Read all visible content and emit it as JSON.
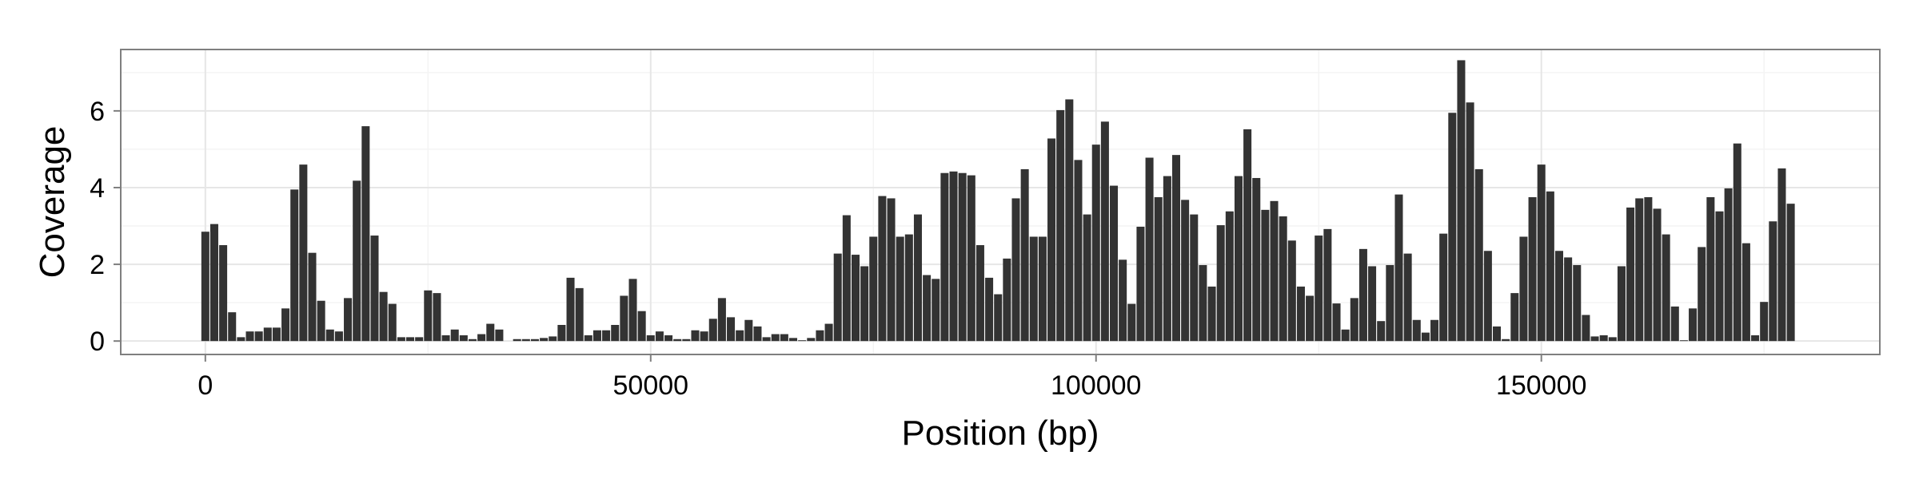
{
  "chart_data": {
    "type": "bar",
    "xlabel": "Position (bp)",
    "ylabel": "Coverage",
    "xlim": [
      -9500,
      188000
    ],
    "ylim": [
      -0.35,
      7.6
    ],
    "x_ticks": [
      0,
      50000,
      100000,
      150000
    ],
    "x_tick_labels": [
      "0",
      "50000",
      "100000",
      "150000"
    ],
    "y_ticks": [
      0,
      2,
      4,
      6
    ],
    "y_tick_labels": [
      "0",
      "2",
      "4",
      "6"
    ],
    "bin_width": 1000,
    "bar_width": 900,
    "grid": true,
    "bar_color": "#333333",
    "values": [
      2.85,
      3.05,
      2.5,
      0.75,
      0.1,
      0.25,
      0.25,
      0.35,
      0.35,
      0.85,
      3.95,
      4.6,
      2.3,
      1.05,
      0.3,
      0.25,
      1.12,
      4.18,
      5.6,
      2.75,
      1.28,
      0.97,
      0.1,
      0.1,
      0.1,
      1.32,
      1.25,
      0.15,
      0.3,
      0.15,
      0.05,
      0.18,
      0.45,
      0.3,
      0.0,
      0.05,
      0.05,
      0.05,
      0.08,
      0.12,
      0.42,
      1.65,
      1.38,
      0.15,
      0.28,
      0.28,
      0.42,
      1.18,
      1.62,
      0.78,
      0.15,
      0.25,
      0.15,
      0.05,
      0.05,
      0.28,
      0.25,
      0.58,
      1.12,
      0.62,
      0.28,
      0.55,
      0.38,
      0.1,
      0.18,
      0.18,
      0.08,
      0.02,
      0.08,
      0.28,
      0.45,
      2.28,
      3.28,
      2.25,
      1.95,
      2.72,
      3.78,
      3.72,
      2.72,
      2.78,
      3.3,
      1.72,
      1.62,
      4.38,
      4.42,
      4.38,
      4.32,
      2.5,
      1.65,
      1.22,
      2.15,
      3.72,
      4.48,
      2.72,
      2.72,
      5.28,
      6.02,
      6.3,
      4.72,
      3.3,
      5.12,
      5.72,
      4.05,
      2.12,
      0.97,
      2.98,
      4.78,
      3.75,
      4.3,
      4.85,
      3.68,
      3.3,
      1.98,
      1.42,
      3.02,
      3.38,
      4.3,
      5.52,
      4.25,
      3.42,
      3.65,
      3.25,
      2.62,
      1.42,
      1.18,
      2.75,
      2.92,
      0.98,
      0.3,
      1.12,
      2.4,
      1.95,
      0.52,
      1.98,
      3.82,
      2.28,
      0.55,
      0.22,
      0.55,
      2.8,
      5.95,
      7.32,
      6.22,
      4.48,
      2.35,
      0.38,
      0.05,
      1.25,
      2.72,
      3.75,
      4.6,
      3.9,
      2.35,
      2.18,
      1.98,
      0.68,
      0.12,
      0.15,
      0.1,
      1.95,
      3.48,
      3.72,
      3.75,
      3.45,
      2.78,
      0.9,
      0.02,
      0.85,
      2.45,
      3.75,
      3.38,
      3.98,
      5.15,
      2.55,
      0.15,
      1.02,
      3.12,
      4.5,
      3.58
    ]
  }
}
